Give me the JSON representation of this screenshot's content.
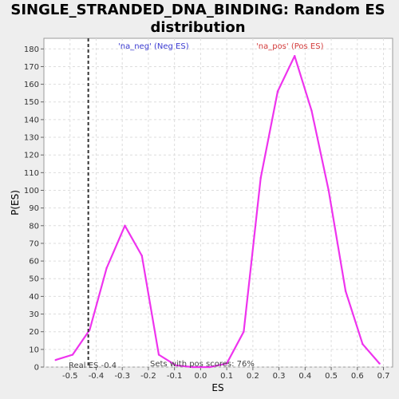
{
  "chart_data": {
    "type": "line",
    "title_line1": "SINGLE_STRANDED_DNA_BINDING: Random ES",
    "title_line2": "distribution",
    "xlabel": "ES",
    "ylabel": "P(ES)",
    "xlim": [
      -0.6,
      0.735
    ],
    "ylim": [
      0,
      186
    ],
    "xticks": [
      -0.5,
      -0.4,
      -0.3,
      -0.2,
      -0.1,
      0.0,
      0.1,
      0.2,
      0.3,
      0.4,
      0.5,
      0.6,
      0.7
    ],
    "xtick_labels": [
      "-0.5",
      "-0.4",
      "-0.3",
      "-0.2",
      "-0.1",
      "0.0",
      "0.1",
      "0.2",
      "0.3",
      "0.4",
      "0.5",
      "0.6",
      "0.7"
    ],
    "yticks": [
      0,
      10,
      20,
      30,
      40,
      50,
      60,
      70,
      80,
      90,
      100,
      110,
      120,
      130,
      140,
      150,
      160,
      170,
      180
    ],
    "grid": true,
    "series": [
      {
        "color": "#ee33ee",
        "x": [
          -0.555,
          -0.49,
          -0.425,
          -0.36,
          -0.29,
          -0.225,
          -0.16,
          -0.095,
          -0.03,
          0.035,
          0.1,
          0.165,
          0.23,
          0.295,
          0.36,
          0.425,
          0.49,
          0.555,
          0.62,
          0.685
        ],
        "y": [
          4,
          7,
          21,
          56,
          80,
          63,
          7,
          1,
          0,
          0,
          2,
          20,
          107,
          156,
          176,
          145,
          100,
          43,
          13,
          2
        ]
      }
    ],
    "legend": [
      {
        "label": "'na_neg' (Neg ES)",
        "color": "#3b3bd1"
      },
      {
        "label": "'na_pos' (Pos ES)",
        "color": "#d43b3b"
      }
    ],
    "real_es": -0.43,
    "real_es_label": "Real ES -0.4",
    "pos_scores_label": "Sets with pos scores: 76%"
  }
}
